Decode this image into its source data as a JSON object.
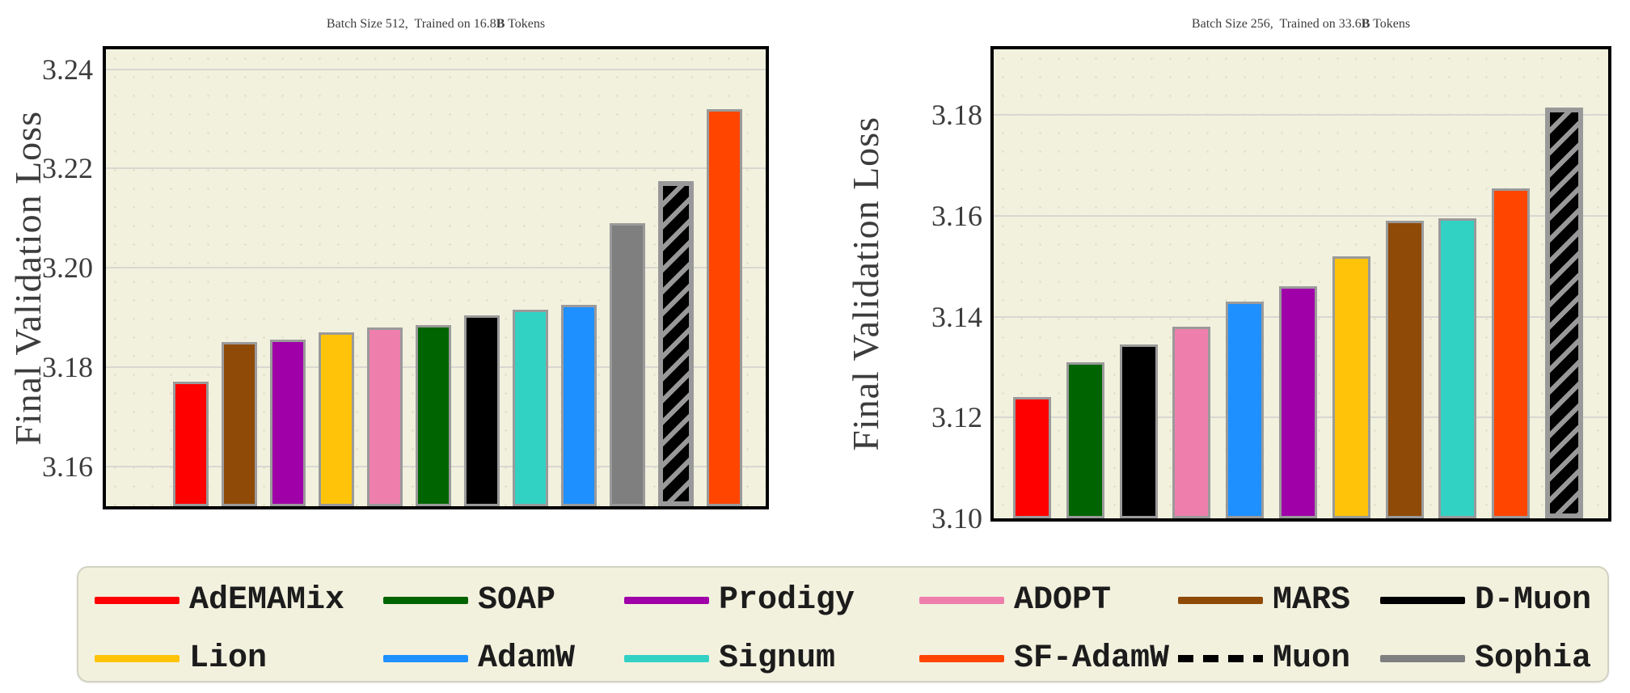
{
  "palette": {
    "AdEMAMix": "#ff0000",
    "SOAP": "#006400",
    "Prodigy": "#a000a8",
    "ADOPT": "#ee7fad",
    "MARS": "#8f4a07",
    "D-Muon": "#000000",
    "Lion": "#ffc40a",
    "AdamW": "#1e90ff",
    "Signum": "#31d2c4",
    "SF-AdamW": "#ff4500",
    "Muon": "#000000",
    "Sophia": "#7f7f7f"
  },
  "styles": {
    "plot_bg": "#f2f1de",
    "grid_color": "#d8d8d2",
    "bar_edge": "#9a9a9a",
    "hatch_stripe": "#999999",
    "text_color": "#3c3c3c",
    "legend_bg": "#f2f1de",
    "legend_border": "#d2d2c2"
  },
  "chart_data": [
    {
      "type": "bar",
      "title": "Batch Size 512, Trained on 16.8B Tokens",
      "title_parts": [
        "Batch Size 512,  Trained on 16.8",
        "B",
        " Tokens"
      ],
      "ylabel": "Final Validation Loss",
      "ylim": [
        3.152,
        3.244
      ],
      "grid": true,
      "legend_position": "bottom",
      "yticks": [
        {
          "value": 3.16,
          "label": "3.16"
        },
        {
          "value": 3.18,
          "label": "3.18"
        },
        {
          "value": 3.2,
          "label": "3.20"
        },
        {
          "value": 3.22,
          "label": "3.22"
        },
        {
          "value": 3.24,
          "label": "3.24"
        }
      ],
      "categories": [
        "AdEMAMix",
        "MARS",
        "Prodigy",
        "Lion",
        "ADOPT",
        "SOAP",
        "D-Muon",
        "Signum",
        "AdamW",
        "Sophia",
        "Muon",
        "SF-AdamW"
      ],
      "values": [
        3.177,
        3.185,
        3.1855,
        3.187,
        3.188,
        3.1885,
        3.1905,
        3.1915,
        3.1925,
        3.209,
        3.2175,
        3.232
      ],
      "hatched": [
        "Muon"
      ]
    },
    {
      "type": "bar",
      "title": "Batch Size 256, Trained on 33.6B Tokens",
      "title_parts": [
        "Batch Size 256,  Trained on 33.6",
        "B",
        " Tokens"
      ],
      "ylabel": "Final Validation Loss",
      "ylim": [
        3.1,
        3.193
      ],
      "grid": true,
      "legend_position": "bottom",
      "yticks": [
        {
          "value": 3.1,
          "label": "3.10"
        },
        {
          "value": 3.12,
          "label": "3.12"
        },
        {
          "value": 3.14,
          "label": "3.14"
        },
        {
          "value": 3.16,
          "label": "3.16"
        },
        {
          "value": 3.18,
          "label": "3.18"
        }
      ],
      "categories": [
        "AdEMAMix",
        "SOAP",
        "D-Muon",
        "ADOPT",
        "AdamW",
        "Prodigy",
        "Lion",
        "MARS",
        "Signum",
        "SF-AdamW",
        "Muon"
      ],
      "values": [
        3.124,
        3.131,
        3.1345,
        3.138,
        3.143,
        3.146,
        3.152,
        3.159,
        3.1595,
        3.1655,
        3.1815
      ],
      "hatched": [
        "Muon"
      ]
    }
  ],
  "legend": {
    "rows": [
      [
        {
          "label": "AdEMAMix",
          "style": "solid"
        },
        {
          "label": "SOAP",
          "style": "solid"
        },
        {
          "label": "Prodigy",
          "style": "solid"
        },
        {
          "label": "ADOPT",
          "style": "solid"
        },
        {
          "label": "MARS",
          "style": "solid"
        },
        {
          "label": "D-Muon",
          "style": "solid"
        }
      ],
      [
        {
          "label": "Lion",
          "style": "solid"
        },
        {
          "label": "AdamW",
          "style": "solid"
        },
        {
          "label": "Signum",
          "style": "solid"
        },
        {
          "label": "SF-AdamW",
          "style": "solid"
        },
        {
          "label": "Muon",
          "style": "dashed"
        },
        {
          "label": "Sophia",
          "style": "solid"
        }
      ]
    ]
  }
}
